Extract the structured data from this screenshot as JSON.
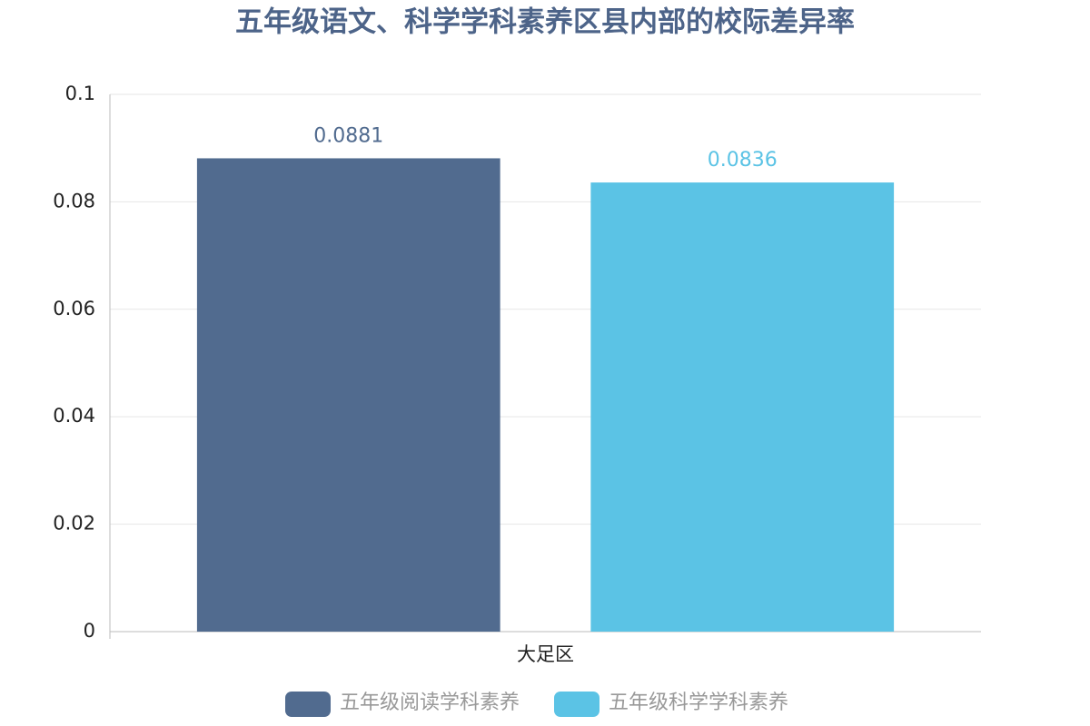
{
  "chart_data": {
    "type": "bar",
    "title": "五年级语文、科学学科素养区县内部的校际差异率",
    "categories": [
      "大足区"
    ],
    "series": [
      {
        "name": "五年级阅读学科素养",
        "color": "#516b8f",
        "values": [
          0.0881
        ]
      },
      {
        "name": "五年级科学学科素养",
        "color": "#5bc3e5",
        "values": [
          0.0836
        ]
      }
    ],
    "ylim": [
      0,
      0.1
    ],
    "yticks": [
      0,
      0.02,
      0.04,
      0.06,
      0.08,
      0.1
    ],
    "grid": true,
    "legend": "bottom"
  }
}
